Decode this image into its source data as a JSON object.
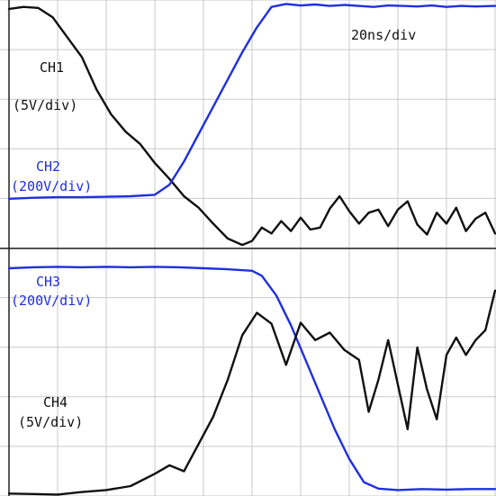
{
  "chart_data": {
    "type": "line",
    "timebase": "20ns/div",
    "grid": true,
    "divisions": {
      "x": 10,
      "y": 10
    },
    "panels": [
      {
        "id": "top",
        "ylim": [
          0,
          5
        ],
        "series": [
          {
            "name": "CH1",
            "scale": "(5V/div)",
            "color": "#111111",
            "x": [
              0,
              0.3,
              0.6,
              0.9,
              1.2,
              1.5,
              1.8,
              2.1,
              2.4,
              2.7,
              3.0,
              3.3,
              3.6,
              3.9,
              4.2,
              4.5,
              4.8,
              5.0,
              5.2,
              5.4,
              5.6,
              5.8,
              6.0,
              6.2,
              6.4,
              6.6,
              6.8,
              7.0,
              7.2,
              7.4,
              7.6,
              7.8,
              8.0,
              8.2,
              8.4,
              8.6,
              8.8,
              9.0,
              9.2,
              9.4,
              9.6,
              9.8,
              10.0
            ],
            "y": [
              4.82,
              4.86,
              4.84,
              4.65,
              4.25,
              3.85,
              3.2,
              2.7,
              2.35,
              2.1,
              1.72,
              1.4,
              1.05,
              0.82,
              0.5,
              0.2,
              0.07,
              0.15,
              0.42,
              0.3,
              0.55,
              0.35,
              0.62,
              0.38,
              0.42,
              0.8,
              1.05,
              0.75,
              0.5,
              0.72,
              0.78,
              0.45,
              0.78,
              0.95,
              0.48,
              0.28,
              0.72,
              0.5,
              0.82,
              0.35,
              0.6,
              0.72,
              0.3
            ]
          },
          {
            "name": "CH2",
            "scale": "(200V/div)",
            "color": "#1f2fe0",
            "x": [
              0,
              0.5,
              1.0,
              1.5,
              2.0,
              2.5,
              3.0,
              3.3,
              3.6,
              3.9,
              4.2,
              4.5,
              4.8,
              5.1,
              5.4,
              5.7,
              6.0,
              6.3,
              6.6,
              6.9,
              7.2,
              7.5,
              7.8,
              8.1,
              8.4,
              8.7,
              9.0,
              9.3,
              9.6,
              10.0
            ],
            "y": [
              1.0,
              1.02,
              1.03,
              1.03,
              1.04,
              1.05,
              1.08,
              1.28,
              1.75,
              2.3,
              2.85,
              3.4,
              3.95,
              4.45,
              4.86,
              4.92,
              4.89,
              4.91,
              4.88,
              4.9,
              4.88,
              4.86,
              4.89,
              4.88,
              4.87,
              4.89,
              4.86,
              4.88,
              4.87,
              4.88
            ]
          }
        ]
      },
      {
        "id": "bottom",
        "ylim": [
          0,
          5
        ],
        "series": [
          {
            "name": "CH3",
            "scale": "(200V/div)",
            "color": "#1f2fe0",
            "x": [
              0,
              0.5,
              1.0,
              1.5,
              2.0,
              2.5,
              3.0,
              3.5,
              4.0,
              4.5,
              5.0,
              5.2,
              5.5,
              5.8,
              6.1,
              6.4,
              6.7,
              7.0,
              7.3,
              7.6,
              8.0,
              8.5,
              9.0,
              9.5,
              10.0
            ],
            "y": [
              4.6,
              4.62,
              4.63,
              4.62,
              4.63,
              4.62,
              4.63,
              4.62,
              4.6,
              4.58,
              4.55,
              4.45,
              4.05,
              3.45,
              2.75,
              2.05,
              1.35,
              0.75,
              0.28,
              0.15,
              0.12,
              0.14,
              0.13,
              0.14,
              0.14
            ]
          },
          {
            "name": "CH4",
            "scale": "(5V/div)",
            "color": "#111111",
            "x": [
              0,
              0.5,
              1.0,
              1.5,
              2.0,
              2.5,
              3.0,
              3.3,
              3.6,
              3.9,
              4.2,
              4.5,
              4.8,
              5.1,
              5.4,
              5.7,
              6.0,
              6.3,
              6.6,
              6.9,
              7.2,
              7.4,
              7.6,
              7.8,
              8.0,
              8.2,
              8.4,
              8.6,
              8.8,
              9.0,
              9.2,
              9.4,
              9.6,
              9.8,
              10.0
            ],
            "y": [
              0.05,
              0.04,
              0.03,
              0.08,
              0.12,
              0.2,
              0.45,
              0.62,
              0.5,
              1.05,
              1.6,
              2.35,
              3.25,
              3.7,
              3.48,
              2.65,
              3.5,
              3.15,
              3.3,
              2.95,
              2.75,
              1.7,
              2.35,
              3.15,
              2.25,
              1.35,
              3.0,
              2.15,
              1.55,
              2.85,
              3.2,
              2.85,
              3.15,
              3.35,
              4.15
            ]
          }
        ]
      }
    ]
  }
}
